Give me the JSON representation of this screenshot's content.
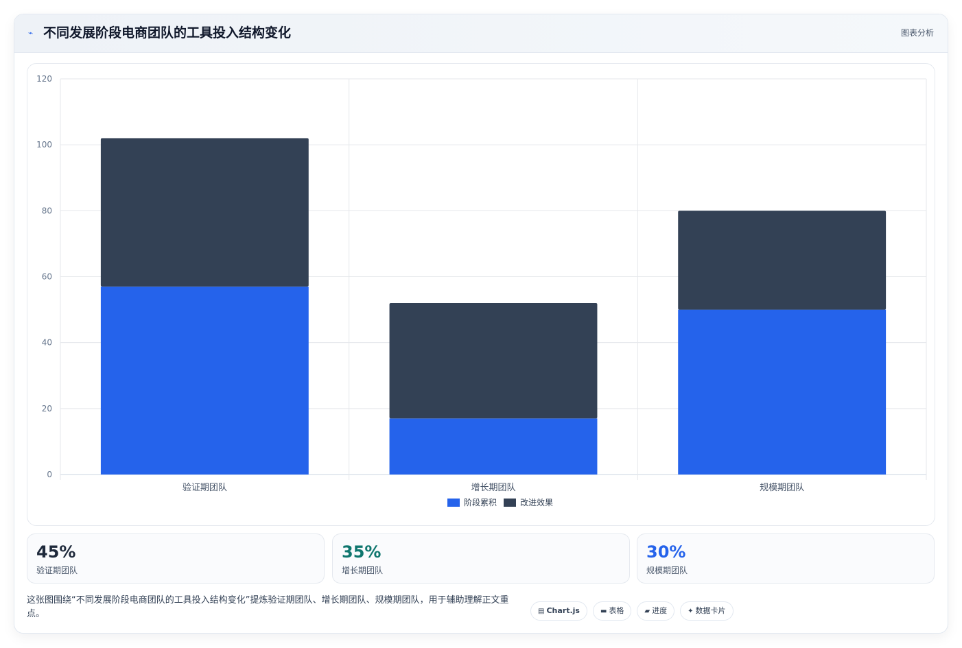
{
  "header": {
    "icon": "chart-icon",
    "title": "不同发展阶段电商团队的工具投入结构变化",
    "badge": "图表分析"
  },
  "chart_data": {
    "type": "bar",
    "stacked": true,
    "categories": [
      "验证期团队",
      "增长期团队",
      "规模期团队"
    ],
    "series": [
      {
        "name": "阶段累积",
        "values": [
          57,
          17,
          50
        ],
        "color": "#2563eb"
      },
      {
        "name": "改进效果",
        "values": [
          45,
          35,
          30
        ],
        "color": "#334155"
      }
    ],
    "ylim": [
      0,
      120
    ],
    "yticks": [
      0,
      20,
      40,
      60,
      80,
      100,
      120
    ],
    "grid": true,
    "legend": "bottom"
  },
  "stats": [
    {
      "value": "45%",
      "label": "验证期团队",
      "color": "#1e293b"
    },
    {
      "value": "35%",
      "label": "增长期团队",
      "color": "#0f766e"
    },
    {
      "value": "30%",
      "label": "规模期团队",
      "color": "#2563eb"
    }
  ],
  "description": "这张图围绕“不同发展阶段电商团队的工具投入结构变化”提炼验证期团队、增长期团队、规模期团队，用于辅助理解正文重点。",
  "tags": [
    {
      "icon": "chart-icon",
      "glyph": "▤",
      "label": "Chart.js"
    },
    {
      "icon": "table-icon",
      "glyph": "▬",
      "label": "表格"
    },
    {
      "icon": "progress-icon",
      "glyph": "▰",
      "label": "进度"
    },
    {
      "icon": "sparkle-icon",
      "glyph": "✦",
      "label": "数据卡片"
    }
  ]
}
